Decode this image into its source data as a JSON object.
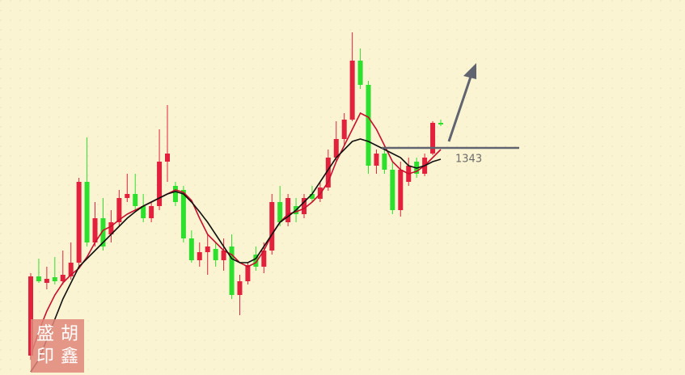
{
  "chart_data": {
    "type": "candlestick",
    "ylim": [
      1202.5,
      1434.5
    ],
    "up_color": "#e3213d",
    "down_color": "#2ee02e",
    "open": [
      1214.5,
      1263.5,
      1259.5,
      1263,
      1260.5,
      1263.5,
      1272,
      1322,
      1284.5,
      1299.5,
      1289.5,
      1297,
      1312,
      1314.5,
      1307,
      1299.5,
      1307,
      1334.5,
      1319.5,
      1317,
      1287,
      1273.5,
      1278.5,
      1280.5,
      1273.5,
      1282,
      1252,
      1260.5,
      1277,
      1269.5,
      1279.5,
      1309.5,
      1297,
      1307,
      1302,
      1314.5,
      1311.5,
      1318.5,
      1337,
      1348.5,
      1360.5,
      1397,
      1382,
      1332,
      1339.5,
      1329.5,
      1304.5,
      1322,
      1334.5,
      1327,
      1339.5,
      1358.5
    ],
    "high": [
      1265.5,
      1274.5,
      1269.5,
      1275.5,
      1279.5,
      1284.5,
      1324.5,
      1349.5,
      1309.5,
      1312,
      1304.5,
      1317,
      1327,
      1327,
      1314.5,
      1309.5,
      1354.5,
      1369.5,
      1322,
      1319.5,
      1292,
      1284.5,
      1289.5,
      1284.5,
      1287,
      1289.5,
      1264.5,
      1272,
      1282,
      1284.5,
      1314.5,
      1319.5,
      1314.5,
      1312,
      1314.5,
      1319.5,
      1322,
      1342,
      1359.5,
      1364.5,
      1414.5,
      1404.5,
      1384.5,
      1342,
      1344.5,
      1334.5,
      1334.5,
      1337,
      1337,
      1339.5,
      1359.5,
      1360.5
    ],
    "low": [
      1212,
      1259.5,
      1255.5,
      1258.5,
      1258.5,
      1261.5,
      1269.5,
      1282,
      1282,
      1279.5,
      1284.5,
      1294.5,
      1309.5,
      1303.5,
      1297,
      1297,
      1304.5,
      1322,
      1307,
      1284.5,
      1272,
      1269.5,
      1264.5,
      1269.5,
      1267,
      1249.5,
      1239.5,
      1258.5,
      1267,
      1265.5,
      1277,
      1294.5,
      1294.5,
      1297,
      1299.5,
      1309.5,
      1309.5,
      1316.5,
      1334.5,
      1344.5,
      1359.5,
      1379.5,
      1327,
      1327,
      1327,
      1302,
      1300.5,
      1319.5,
      1324.5,
      1325.5,
      1338.5,
      1356.5
    ],
    "close": [
      1263.5,
      1260.5,
      1262,
      1260.5,
      1264.5,
      1272,
      1322,
      1284.5,
      1299.5,
      1282,
      1297,
      1312,
      1314.5,
      1307,
      1299.5,
      1307,
      1334.5,
      1339.5,
      1309.5,
      1287,
      1273.5,
      1278.5,
      1282,
      1273.5,
      1279.5,
      1252,
      1260.5,
      1270.5,
      1269.5,
      1279.5,
      1309.5,
      1297,
      1312,
      1302,
      1312,
      1311.5,
      1318.5,
      1337,
      1348.5,
      1360.5,
      1397,
      1382,
      1332,
      1339.5,
      1329.5,
      1304.5,
      1329.5,
      1332,
      1327,
      1337,
      1358.5,
      1357.5
    ],
    "series": [
      {
        "color": "#c8102e",
        "values": [
          1214.5,
          1229.5,
          1242,
          1252,
          1259.5,
          1264.5,
          1268.5,
          1275.5,
          1284.5,
          1292,
          1294.5,
          1298.5,
          1302,
          1304.5,
          1307,
          1309.5,
          1312,
          1314.5,
          1317,
          1315.5,
          1310.5,
          1299.5,
          1289.5,
          1284.5,
          1279.5,
          1277,
          1272,
          1269.5,
          1272,
          1279.5,
          1289.5,
          1297,
          1302,
          1303.5,
          1305.5,
          1309.5,
          1314.5,
          1322,
          1334.5,
          1344.5,
          1354.5,
          1364.5,
          1362,
          1354.5,
          1344.5,
          1334.5,
          1329.5,
          1327,
          1328.5,
          1332,
          1337,
          1342
        ]
      },
      {
        "color": "#111111",
        "values": [
          1204.5,
          1212,
          1224.5,
          1237,
          1249.5,
          1259.5,
          1269.5,
          1274.5,
          1279.5,
          1284.5,
          1289.5,
          1294.5,
          1299.5,
          1303.5,
          1307,
          1309.5,
          1312,
          1314.5,
          1316,
          1314.5,
          1309.5,
          1303.5,
          1297,
          1289.5,
          1282,
          1274.5,
          1272,
          1272,
          1274.5,
          1282,
          1289.5,
          1297,
          1300.5,
          1304.5,
          1309.5,
          1314.5,
          1322,
          1329.5,
          1337,
          1342,
          1347,
          1348.5,
          1347,
          1344.5,
          1342,
          1339.5,
          1337,
          1332,
          1330.5,
          1332,
          1334.5,
          1336
        ]
      }
    ],
    "level": 1343,
    "seal": [
      "盛",
      "胡",
      "印",
      "鑫"
    ]
  }
}
